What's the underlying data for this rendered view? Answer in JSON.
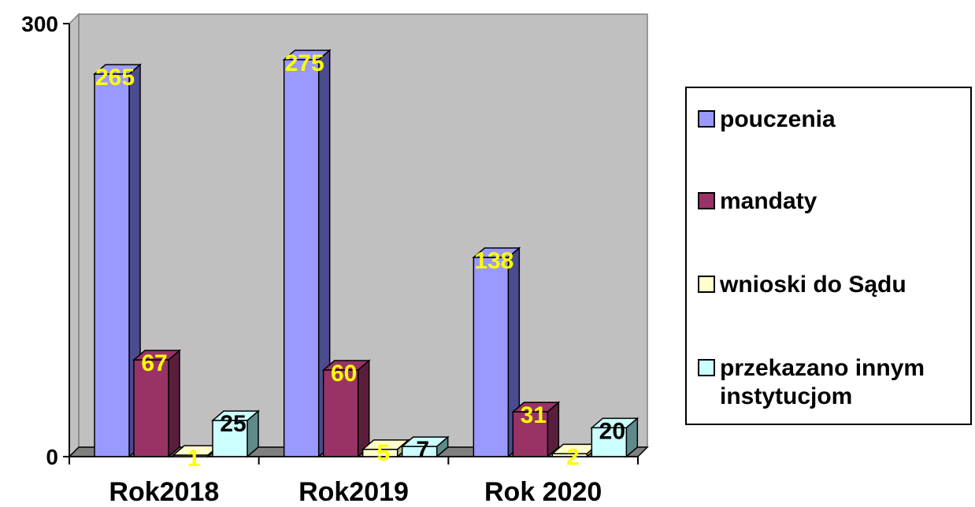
{
  "chart_data": {
    "type": "bar",
    "categories": [
      "Rok2018",
      "Rok2019",
      "Rok 2020"
    ],
    "series": [
      {
        "name": "pouczenia",
        "values": [
          265,
          275,
          138
        ],
        "color": "#9999ff",
        "side_color": "#4b4b8f",
        "label_color": "#ffff00"
      },
      {
        "name": "mandaty",
        "values": [
          67,
          60,
          31
        ],
        "color": "#993366",
        "side_color": "#5a1e3c",
        "label_color": "#ffff00"
      },
      {
        "name": "wnioski do Sądu",
        "values": [
          1,
          5,
          2
        ],
        "color": "#ffffcc",
        "side_color": "#b8b88a",
        "label_color": "#ffff00"
      },
      {
        "name": "przekazano innym instytucjom",
        "values": [
          25,
          7,
          20
        ],
        "color": "#ccffff",
        "side_color": "#5f8a8a",
        "label_color": "#000000"
      }
    ],
    "ylim": [
      0,
      300
    ],
    "yticks": [
      0,
      300
    ],
    "plot_background": "#c0c0c0",
    "floor_color": "#808080",
    "legend_position": "right"
  }
}
